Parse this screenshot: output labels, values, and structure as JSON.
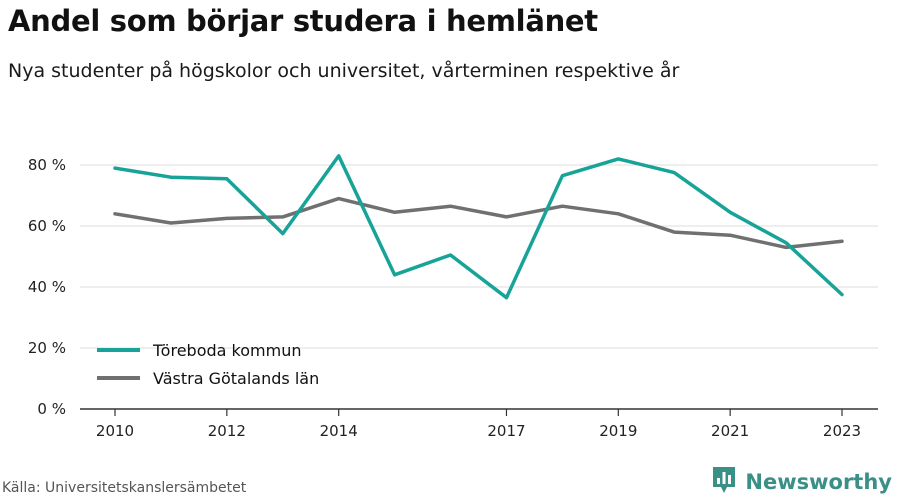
{
  "header": {
    "title": "Andel som börjar studera i hemlänet",
    "subtitle": "Nya studenter på högskolor och universitet, vårterminen respektive år"
  },
  "footer": {
    "source": "Källa: Universitetskanslersämbetet",
    "brand": "Newsworthy"
  },
  "colors": {
    "series1": "#17a398",
    "series2": "#707070",
    "grid": "#dddddd",
    "axis": "#333333",
    "brand": "#3a8f86"
  },
  "icons": {
    "brand_logo": "bar-chart-badge-icon"
  },
  "chart_data": {
    "type": "line",
    "title": "Andel som börjar studera i hemlänet",
    "subtitle": "Nya studenter på högskolor och universitet, vårterminen respektive år",
    "xlabel": "",
    "ylabel": "",
    "x": [
      2010,
      2011,
      2012,
      2013,
      2014,
      2015,
      2016,
      2017,
      2018,
      2019,
      2020,
      2021,
      2022,
      2023
    ],
    "x_ticks": [
      2010,
      2012,
      2014,
      2017,
      2019,
      2021,
      2023
    ],
    "y_ticks": [
      0,
      20,
      40,
      60,
      80
    ],
    "y_tick_labels": [
      "0 %",
      "20 %",
      "40 %",
      "60 %",
      "80 %"
    ],
    "ylim": [
      0,
      90
    ],
    "grid": true,
    "legend_position": "bottom-left",
    "series": [
      {
        "name": "Töreboda kommun",
        "color": "#17a398",
        "values": [
          79,
          76,
          75.5,
          57.5,
          83,
          44,
          50.5,
          36.5,
          76.5,
          82,
          77.5,
          64.5,
          54.5,
          37.5
        ]
      },
      {
        "name": "Västra Götalands län",
        "color": "#707070",
        "values": [
          64,
          61,
          62.5,
          63,
          69,
          64.5,
          66.5,
          63,
          66.5,
          64,
          58,
          57,
          53,
          55
        ]
      }
    ]
  }
}
